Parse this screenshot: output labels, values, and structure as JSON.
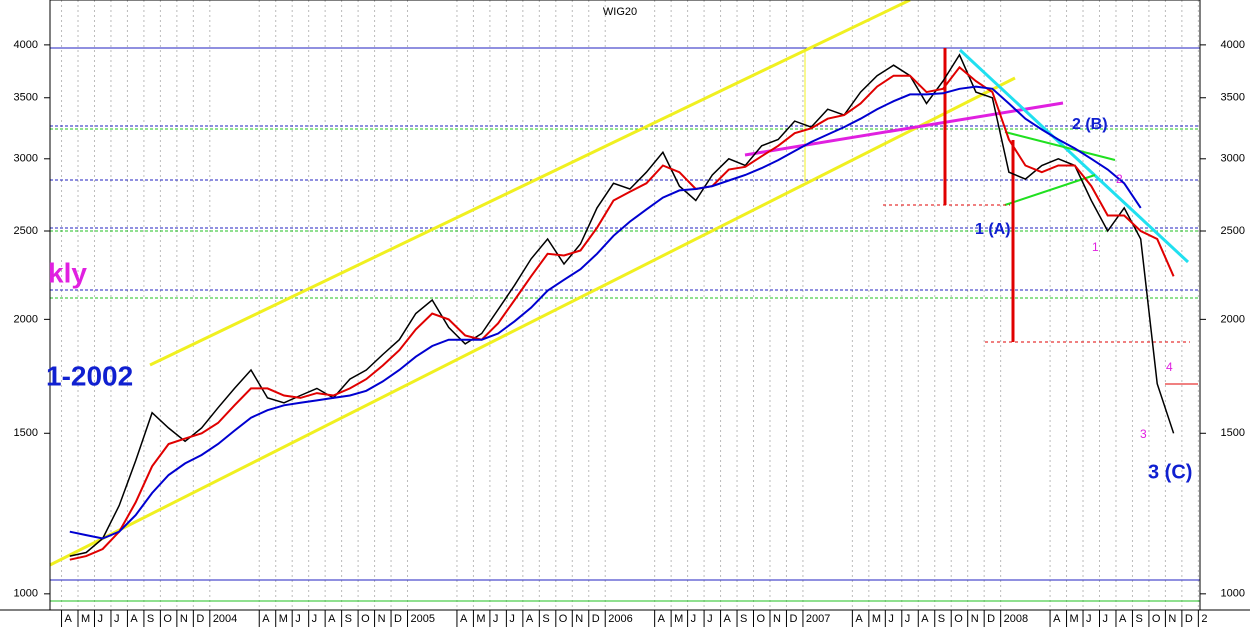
{
  "chart_data": {
    "type": "line",
    "title": "WIG20",
    "log_scale": true,
    "grid": true,
    "xlim": [
      2.3,
      72.1
    ],
    "ylim": [
      960,
      4480
    ],
    "yticks": [
      1000,
      1500,
      2000,
      2500,
      3000,
      3500,
      4000
    ],
    "xticks": [
      {
        "value": 3,
        "label": "A"
      },
      {
        "value": 4,
        "label": "M"
      },
      {
        "value": 5,
        "label": "J"
      },
      {
        "value": 6,
        "label": "J"
      },
      {
        "value": 7,
        "label": "A"
      },
      {
        "value": 8,
        "label": "S"
      },
      {
        "value": 9,
        "label": "O"
      },
      {
        "value": 10,
        "label": "N"
      },
      {
        "value": 11,
        "label": "D"
      },
      {
        "value": 12,
        "label": "2004"
      },
      {
        "value": 15,
        "label": "A"
      },
      {
        "value": 16,
        "label": "M"
      },
      {
        "value": 17,
        "label": "J"
      },
      {
        "value": 18,
        "label": "J"
      },
      {
        "value": 19,
        "label": "A"
      },
      {
        "value": 20,
        "label": "S"
      },
      {
        "value": 21,
        "label": "O"
      },
      {
        "value": 22,
        "label": "N"
      },
      {
        "value": 23,
        "label": "D"
      },
      {
        "value": 24,
        "label": "2005"
      },
      {
        "value": 27,
        "label": "A"
      },
      {
        "value": 28,
        "label": "M"
      },
      {
        "value": 29,
        "label": "J"
      },
      {
        "value": 30,
        "label": "J"
      },
      {
        "value": 31,
        "label": "A"
      },
      {
        "value": 32,
        "label": "S"
      },
      {
        "value": 33,
        "label": "O"
      },
      {
        "value": 34,
        "label": "N"
      },
      {
        "value": 35,
        "label": "D"
      },
      {
        "value": 36,
        "label": "2006"
      },
      {
        "value": 39,
        "label": "A"
      },
      {
        "value": 40,
        "label": "M"
      },
      {
        "value": 41,
        "label": "J"
      },
      {
        "value": 42,
        "label": "J"
      },
      {
        "value": 43,
        "label": "A"
      },
      {
        "value": 44,
        "label": "S"
      },
      {
        "value": 45,
        "label": "O"
      },
      {
        "value": 46,
        "label": "N"
      },
      {
        "value": 47,
        "label": "D"
      },
      {
        "value": 48,
        "label": "2007"
      },
      {
        "value": 51,
        "label": "A"
      },
      {
        "value": 52,
        "label": "M"
      },
      {
        "value": 53,
        "label": "J"
      },
      {
        "value": 54,
        "label": "J"
      },
      {
        "value": 55,
        "label": "A"
      },
      {
        "value": 56,
        "label": "S"
      },
      {
        "value": 57,
        "label": "O"
      },
      {
        "value": 58,
        "label": "N"
      },
      {
        "value": 59,
        "label": "D"
      },
      {
        "value": 60,
        "label": "2008"
      },
      {
        "value": 63,
        "label": "A"
      },
      {
        "value": 64,
        "label": "M"
      },
      {
        "value": 65,
        "label": "J"
      },
      {
        "value": 66,
        "label": "J"
      },
      {
        "value": 67,
        "label": "A"
      },
      {
        "value": 68,
        "label": "S"
      },
      {
        "value": 69,
        "label": "O"
      },
      {
        "value": 70,
        "label": "N"
      },
      {
        "value": 71,
        "label": "D"
      },
      {
        "value": 72,
        "label": "2"
      }
    ],
    "x": [
      3.5,
      4.5,
      5.5,
      6.5,
      7.5,
      8.5,
      9.5,
      10.5,
      11.5,
      12.5,
      13.5,
      14.5,
      15.5,
      16.5,
      17.5,
      18.5,
      19.5,
      20.5,
      21.5,
      22.5,
      23.5,
      24.5,
      25.5,
      26.5,
      27.5,
      28.5,
      29.5,
      30.5,
      31.5,
      32.5,
      33.5,
      34.5,
      35.5,
      36.5,
      37.5,
      38.5,
      39.5,
      40.5,
      41.5,
      42.5,
      43.5,
      44.5,
      45.5,
      46.5,
      47.5,
      48.5,
      49.5,
      50.5,
      51.5,
      52.5,
      53.5,
      54.5,
      55.5,
      56.5,
      57.5,
      58.5,
      59.5,
      60.5,
      61.5,
      62.5,
      63.5,
      64.5,
      65.5,
      66.5,
      67.5,
      68.5,
      69.5,
      70.5
    ],
    "series": [
      {
        "color": "#000000",
        "values": [
          1100,
          1110,
          1150,
          1250,
          1400,
          1580,
          1520,
          1470,
          1520,
          1600,
          1680,
          1760,
          1640,
          1620,
          1650,
          1680,
          1640,
          1720,
          1760,
          1830,
          1900,
          2030,
          2100,
          1960,
          1880,
          1930,
          2050,
          2180,
          2330,
          2450,
          2300,
          2420,
          2650,
          2820,
          2780,
          2900,
          3050,
          2800,
          2700,
          2880,
          3000,
          2950,
          3100,
          3150,
          3300,
          3250,
          3400,
          3350,
          3550,
          3700,
          3800,
          3700,
          3450,
          3650,
          3900,
          3550,
          3500,
          2900,
          2850,
          2950,
          3000,
          2950,
          2700,
          2500,
          2650,
          2450,
          1700,
          1500
        ]
      },
      {
        "color": "#e00000",
        "values": [
          1090,
          1100,
          1120,
          1170,
          1260,
          1380,
          1460,
          1480,
          1500,
          1540,
          1610,
          1680,
          1680,
          1650,
          1640,
          1660,
          1650,
          1680,
          1720,
          1780,
          1850,
          1950,
          2030,
          2000,
          1920,
          1900,
          1980,
          2100,
          2230,
          2360,
          2350,
          2380,
          2520,
          2700,
          2760,
          2820,
          2950,
          2900,
          2780,
          2800,
          2920,
          2940,
          3020,
          3100,
          3200,
          3240,
          3320,
          3350,
          3450,
          3600,
          3700,
          3700,
          3550,
          3580,
          3780,
          3650,
          3550,
          3150,
          2950,
          2900,
          2950,
          2950,
          2800,
          2600,
          2600,
          2500,
          2450,
          2230
        ]
      },
      {
        "color": "#0000d0",
        "values": [
          1170,
          1160,
          1150,
          1170,
          1220,
          1290,
          1350,
          1390,
          1420,
          1460,
          1510,
          1560,
          1590,
          1610,
          1620,
          1630,
          1640,
          1650,
          1670,
          1710,
          1760,
          1820,
          1870,
          1900,
          1900,
          1900,
          1930,
          1990,
          2060,
          2150,
          2210,
          2270,
          2360,
          2470,
          2560,
          2640,
          2720,
          2770,
          2780,
          2800,
          2840,
          2880,
          2930,
          2990,
          3060,
          3130,
          3190,
          3250,
          3320,
          3400,
          3470,
          3530,
          3530,
          3540,
          3580,
          3600,
          3580,
          3450,
          3320,
          3230,
          3150,
          3080,
          3000,
          2920,
          2820,
          2650,
          null,
          null
        ]
      }
    ],
    "annotations": [
      "kly",
      "1-2002",
      "1 (A)",
      "2 (B)",
      "3 (C)",
      "1",
      "2",
      "3",
      "4"
    ]
  }
}
